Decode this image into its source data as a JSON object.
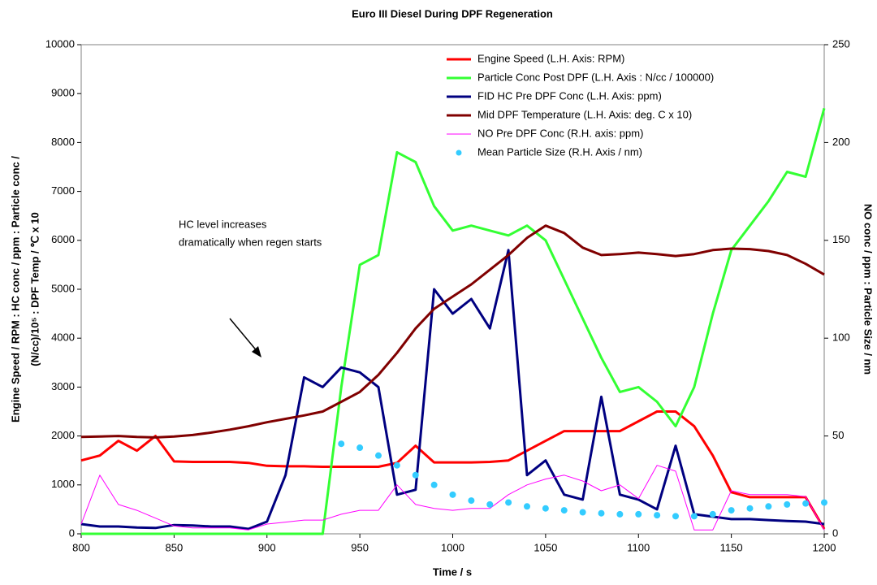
{
  "chart_data": {
    "type": "line",
    "title": "Euro III Diesel During DPF Regeneration",
    "xlabel": "Time / s",
    "ylabel": [
      "Engine Speed / RPM : HC conc / ppm : Particle conc /",
      "(N/cc)/10⁵ : DPF Temp / ℃ x 10"
    ],
    "y2label": "NO conc / ppm : Particle Size / nm",
    "annotation": [
      "HC level increases",
      "dramatically when regen starts"
    ],
    "legend": "upper right",
    "xlim": [
      800,
      1200
    ],
    "xticks": [
      800,
      850,
      900,
      950,
      1000,
      1050,
      1100,
      1150,
      1200
    ],
    "ylim": [
      0,
      10000
    ],
    "yticks": [
      0,
      1000,
      2000,
      3000,
      4000,
      5000,
      6000,
      7000,
      8000,
      9000,
      10000
    ],
    "y2lim": [
      0,
      250
    ],
    "y2ticks": [
      0,
      50,
      100,
      150,
      200,
      250
    ],
    "x": [
      800,
      810,
      820,
      830,
      840,
      850,
      860,
      870,
      880,
      890,
      900,
      910,
      920,
      930,
      940,
      950,
      960,
      970,
      980,
      990,
      1000,
      1010,
      1020,
      1030,
      1040,
      1050,
      1060,
      1070,
      1080,
      1090,
      1100,
      1110,
      1120,
      1130,
      1140,
      1150,
      1160,
      1170,
      1180,
      1190,
      1200
    ],
    "series": [
      {
        "name": "Engine Speed (L.H. Axis: RPM)",
        "color": "#ff0000",
        "width": 3,
        "values": [
          1500,
          1600,
          1900,
          1700,
          2000,
          1480,
          1470,
          1470,
          1470,
          1450,
          1390,
          1380,
          1380,
          1370,
          1370,
          1370,
          1370,
          1450,
          1800,
          1460,
          1460,
          1460,
          1470,
          1500,
          1700,
          1900,
          2100,
          2100,
          2100,
          2100,
          2300,
          2500,
          2500,
          2200,
          1600,
          850,
          750,
          750,
          750,
          750,
          100
        ]
      },
      {
        "name": "Particle Conc Post DPF (L.H. Axis : N/cc / 100000)",
        "color": "#33ff33",
        "width": 3,
        "values": [
          0,
          0,
          0,
          0,
          0,
          0,
          0,
          0,
          0,
          0,
          0,
          0,
          0,
          0,
          3000,
          5500,
          5700,
          7800,
          7600,
          6700,
          6200,
          6300,
          6200,
          6100,
          6300,
          6000,
          5200,
          4400,
          3600,
          2900,
          3000,
          2700,
          2200,
          3000,
          4500,
          5800,
          6300,
          6800,
          7400,
          7300,
          8700
        ]
      },
      {
        "name": "FID HC Pre DPF Conc (L.H. Axis: ppm)",
        "color": "#000080",
        "width": 3,
        "values": [
          200,
          150,
          150,
          130,
          120,
          180,
          170,
          150,
          150,
          100,
          250,
          1200,
          3200,
          3000,
          3400,
          3300,
          3000,
          800,
          900,
          5000,
          4500,
          4800,
          4200,
          5800,
          1200,
          1500,
          800,
          700,
          2800,
          800,
          700,
          500,
          1800,
          400,
          350,
          300,
          300,
          280,
          260,
          250,
          200
        ]
      },
      {
        "name": "Mid DPF Temperature (L.H. Axis: deg. C x 10)",
        "color": "#800000",
        "width": 3,
        "values": [
          1980,
          1990,
          2000,
          1980,
          1970,
          1990,
          2020,
          2070,
          2130,
          2200,
          2280,
          2350,
          2420,
          2500,
          2700,
          2900,
          3250,
          3700,
          4200,
          4600,
          4850,
          5100,
          5400,
          5700,
          6050,
          6300,
          6150,
          5850,
          5700,
          5720,
          5750,
          5720,
          5680,
          5720,
          5800,
          5830,
          5820,
          5780,
          5700,
          5520,
          5300
        ]
      },
      {
        "name": "NO Pre DPF Conc (R.H. axis: ppm)",
        "color": "#ff00ff",
        "width": 1,
        "axis": "y2",
        "values": [
          5,
          30,
          15,
          12,
          8,
          4,
          3,
          3,
          3,
          2,
          5,
          6,
          7,
          7,
          10,
          12,
          12,
          25,
          15,
          13,
          12,
          13,
          13,
          20,
          25,
          28,
          30,
          27,
          22,
          25,
          18,
          35,
          32,
          2,
          2,
          22,
          20,
          20,
          20,
          19,
          2
        ]
      },
      {
        "name": "Mean Particle Size (R.H. Axis / nm)",
        "color": "#33ccff",
        "marker": true,
        "axis": "y2",
        "values": [
          null,
          null,
          null,
          null,
          null,
          null,
          null,
          null,
          null,
          null,
          null,
          null,
          null,
          null,
          46,
          44,
          40,
          35,
          30,
          25,
          20,
          17,
          15,
          16,
          14,
          13,
          12,
          11,
          10.5,
          10,
          10,
          9.5,
          9,
          9,
          10,
          12,
          13,
          14,
          15,
          15.5,
          16
        ]
      }
    ]
  }
}
